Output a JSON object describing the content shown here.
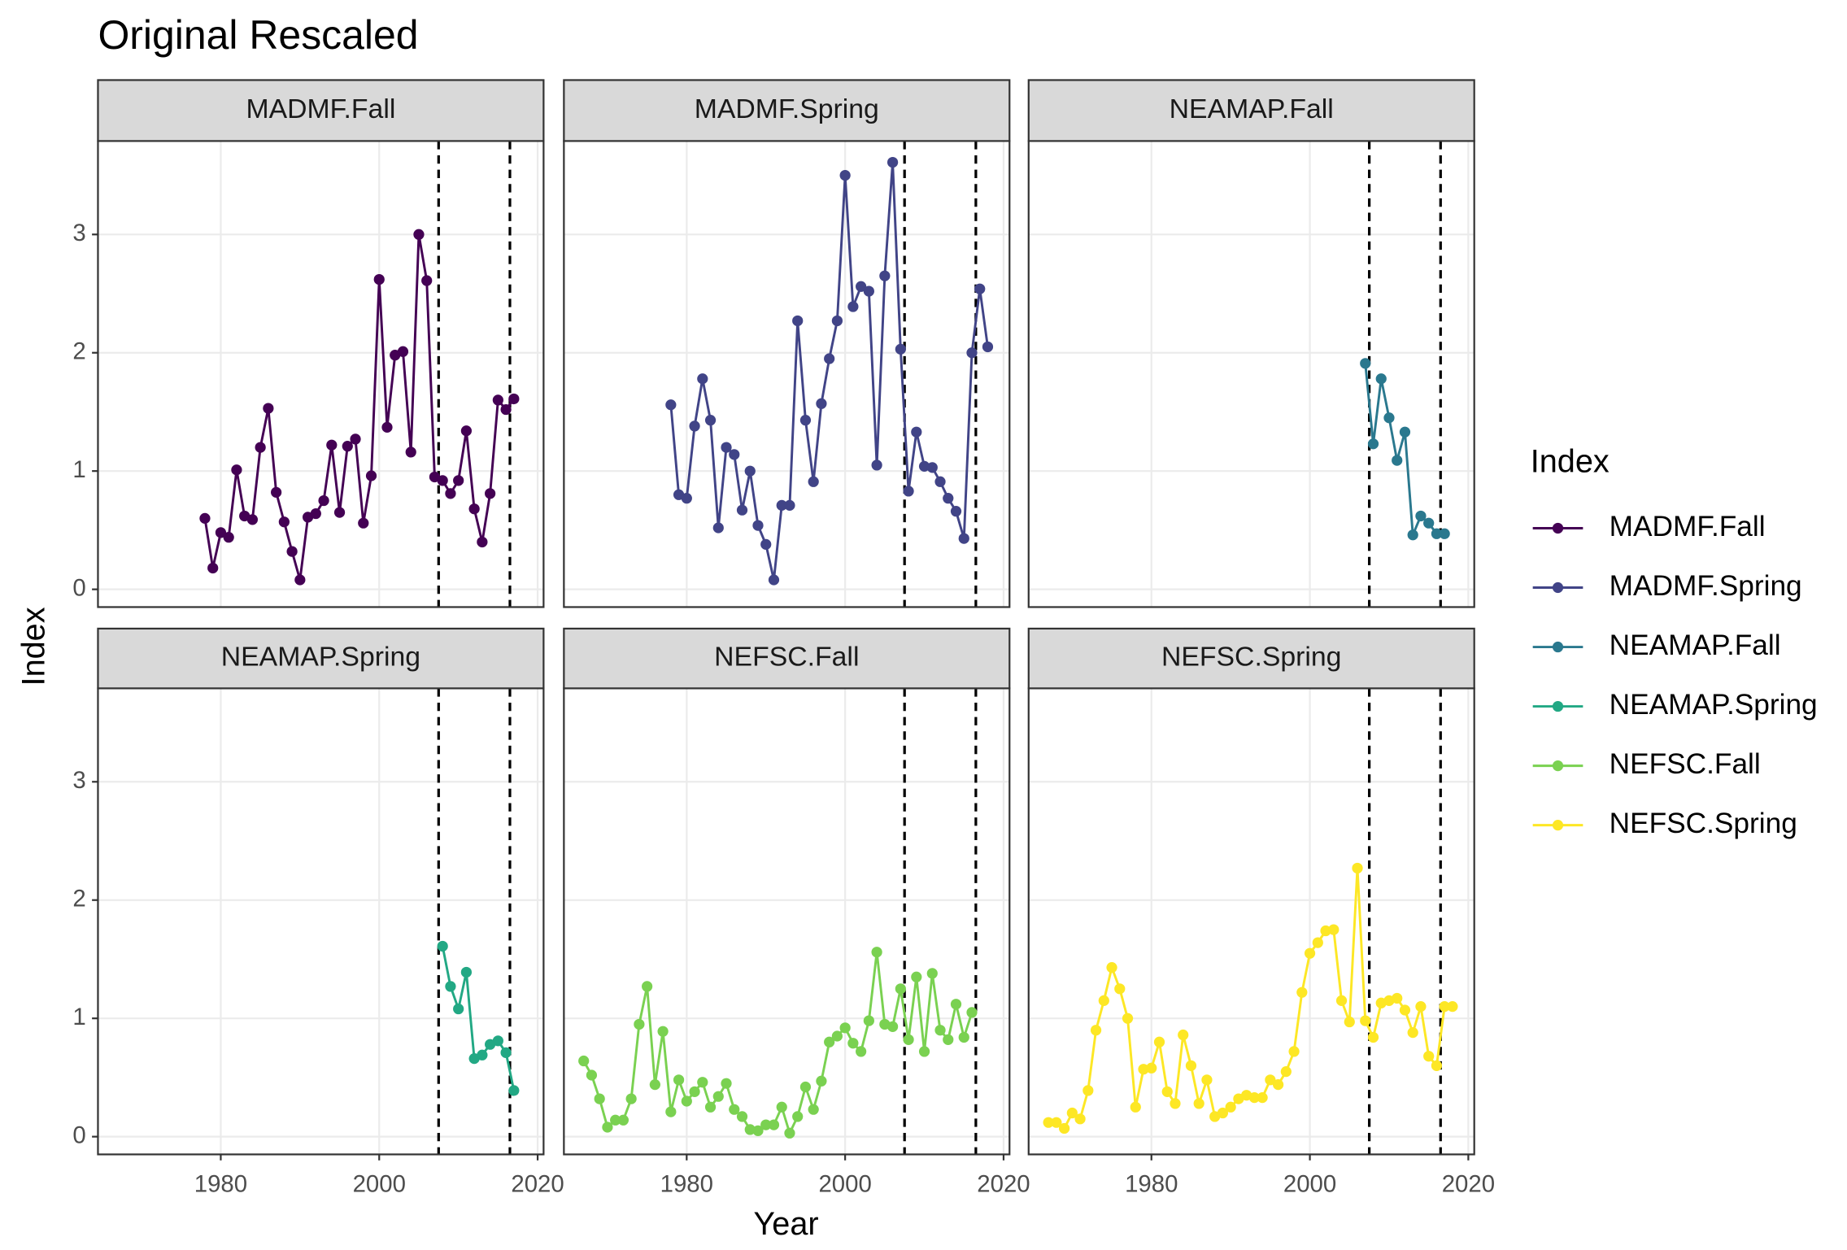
{
  "chart_data": {
    "type": "line",
    "title": "Original Rescaled",
    "xlabel": "Year",
    "ylabel": "Index",
    "legend_title": "Index",
    "xlim": [
      1964.5,
      2020.75
    ],
    "ylim": [
      -0.15,
      3.79
    ],
    "xticks": [
      1980,
      2000,
      2020
    ],
    "yticks": [
      0,
      1,
      2,
      3
    ],
    "grid": true,
    "vlines": [
      2007.5,
      2016.5
    ],
    "series": [
      {
        "name": "MADMF.Fall",
        "color": "#440154",
        "x": [
          1978,
          1979,
          1980,
          1981,
          1982,
          1983,
          1984,
          1985,
          1986,
          1987,
          1988,
          1989,
          1990,
          1991,
          1992,
          1993,
          1994,
          1995,
          1996,
          1997,
          1998,
          1999,
          2000,
          2001,
          2002,
          2003,
          2004,
          2005,
          2006,
          2007,
          2008,
          2009,
          2010,
          2011,
          2012,
          2013,
          2014,
          2015,
          2016,
          2017
        ],
        "values": [
          0.6,
          0.18,
          0.48,
          0.44,
          1.01,
          0.62,
          0.59,
          1.2,
          1.53,
          0.82,
          0.57,
          0.32,
          0.08,
          0.61,
          0.64,
          0.75,
          1.22,
          0.65,
          1.21,
          1.27,
          0.56,
          0.96,
          2.62,
          1.37,
          1.98,
          2.01,
          1.16,
          3.0,
          2.61,
          0.95,
          0.92,
          0.81,
          0.92,
          1.34,
          0.68,
          0.4,
          0.81,
          1.6,
          1.52,
          1.61
        ]
      },
      {
        "name": "MADMF.Spring",
        "color": "#414487",
        "x": [
          1978,
          1979,
          1980,
          1981,
          1982,
          1983,
          1984,
          1985,
          1986,
          1987,
          1988,
          1989,
          1990,
          1991,
          1992,
          1993,
          1994,
          1995,
          1996,
          1997,
          1998,
          1999,
          2000,
          2001,
          2002,
          2003,
          2004,
          2005,
          2006,
          2007,
          2008,
          2009,
          2010,
          2011,
          2012,
          2013,
          2014,
          2015,
          2016,
          2017,
          2018
        ],
        "values": [
          1.56,
          0.8,
          0.77,
          1.38,
          1.78,
          1.43,
          0.52,
          1.2,
          1.14,
          0.67,
          1.0,
          0.54,
          0.38,
          0.08,
          0.71,
          0.71,
          2.27,
          1.43,
          0.91,
          1.57,
          1.95,
          2.27,
          3.5,
          2.39,
          2.56,
          2.52,
          1.05,
          2.65,
          3.61,
          2.03,
          0.83,
          1.33,
          1.04,
          1.03,
          0.91,
          0.77,
          0.66,
          0.43,
          2.0,
          2.54,
          2.05
        ]
      },
      {
        "name": "NEAMAP.Fall",
        "color": "#2A788E",
        "x": [
          2007,
          2008,
          2009,
          2010,
          2011,
          2012,
          2013,
          2014,
          2015,
          2016,
          2017
        ],
        "values": [
          1.91,
          1.23,
          1.78,
          1.45,
          1.09,
          1.33,
          0.46,
          0.62,
          0.56,
          0.47,
          0.47
        ]
      },
      {
        "name": "NEAMAP.Spring",
        "color": "#22A884",
        "x": [
          2008,
          2009,
          2010,
          2011,
          2012,
          2013,
          2014,
          2015,
          2016,
          2017
        ],
        "values": [
          1.61,
          1.27,
          1.08,
          1.39,
          0.66,
          0.69,
          0.78,
          0.81,
          0.71,
          0.39
        ]
      },
      {
        "name": "NEFSC.Fall",
        "color": "#7AD151",
        "x": [
          1967,
          1968,
          1969,
          1970,
          1971,
          1972,
          1973,
          1974,
          1975,
          1976,
          1977,
          1978,
          1979,
          1980,
          1981,
          1982,
          1983,
          1984,
          1985,
          1986,
          1987,
          1988,
          1989,
          1990,
          1991,
          1992,
          1993,
          1994,
          1995,
          1996,
          1997,
          1998,
          1999,
          2000,
          2001,
          2002,
          2003,
          2004,
          2005,
          2006,
          2007,
          2008,
          2009,
          2010,
          2011,
          2012,
          2013,
          2014,
          2015,
          2016
        ],
        "values": [
          0.64,
          0.52,
          0.32,
          0.08,
          0.14,
          0.14,
          0.32,
          0.95,
          1.27,
          0.44,
          0.89,
          0.21,
          0.48,
          0.3,
          0.38,
          0.46,
          0.25,
          0.34,
          0.45,
          0.23,
          0.17,
          0.06,
          0.05,
          0.1,
          0.1,
          0.25,
          0.03,
          0.17,
          0.42,
          0.23,
          0.47,
          0.8,
          0.85,
          0.92,
          0.79,
          0.72,
          0.98,
          1.56,
          0.95,
          0.93,
          1.25,
          0.82,
          1.35,
          0.72,
          1.38,
          0.9,
          0.82,
          1.12,
          0.84,
          1.05
        ]
      },
      {
        "name": "NEFSC.Spring",
        "color": "#FDE725",
        "x": [
          1967,
          1968,
          1969,
          1970,
          1971,
          1972,
          1973,
          1974,
          1975,
          1976,
          1977,
          1978,
          1979,
          1980,
          1981,
          1982,
          1983,
          1984,
          1985,
          1986,
          1987,
          1988,
          1989,
          1990,
          1991,
          1992,
          1993,
          1994,
          1995,
          1996,
          1997,
          1998,
          1999,
          2000,
          2001,
          2002,
          2003,
          2004,
          2005,
          2006,
          2007,
          2008,
          2009,
          2010,
          2011,
          2012,
          2013,
          2014,
          2015,
          2016,
          2017,
          2018
        ],
        "values": [
          0.12,
          0.12,
          0.07,
          0.2,
          0.15,
          0.39,
          0.9,
          1.15,
          1.43,
          1.25,
          1.0,
          0.25,
          0.57,
          0.58,
          0.8,
          0.38,
          0.28,
          0.86,
          0.6,
          0.28,
          0.48,
          0.17,
          0.2,
          0.25,
          0.32,
          0.35,
          0.33,
          0.33,
          0.48,
          0.44,
          0.55,
          0.72,
          1.22,
          1.55,
          1.64,
          1.74,
          1.75,
          1.15,
          0.97,
          2.27,
          0.98,
          0.84,
          1.13,
          1.15,
          1.17,
          1.07,
          0.88,
          1.1,
          0.68,
          0.6,
          1.1,
          1.1
        ]
      }
    ]
  }
}
